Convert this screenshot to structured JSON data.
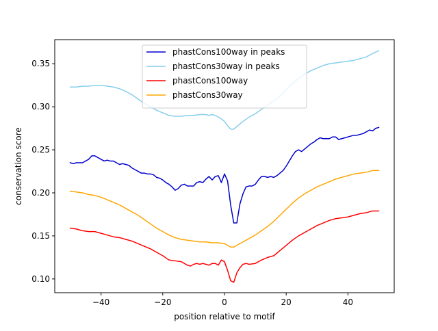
{
  "chart_data": {
    "type": "line",
    "title": "",
    "xlabel": "position relative to motif",
    "ylabel": "conservation score",
    "xlim": [
      -55,
      55
    ],
    "ylim": [
      0.084,
      0.378
    ],
    "xticks": [
      -40,
      -20,
      0,
      20,
      40
    ],
    "xtick_labels": [
      "−40",
      "−20",
      "0",
      "20",
      "40"
    ],
    "yticks": [
      0.1,
      0.15,
      0.2,
      0.25,
      0.3,
      0.35
    ],
    "ytick_labels": [
      "0.10",
      "0.15",
      "0.20",
      "0.25",
      "0.30",
      "0.35"
    ],
    "grid": false,
    "legend_position": "upper center",
    "series": [
      {
        "name": "phastCons100way in peaks",
        "color": "#0000cd",
        "points": [
          [
            -50,
            0.235
          ],
          [
            -49,
            0.234
          ],
          [
            -48,
            0.235
          ],
          [
            -47,
            0.235
          ],
          [
            -46,
            0.235
          ],
          [
            -45,
            0.237
          ],
          [
            -44,
            0.239
          ],
          [
            -43,
            0.243
          ],
          [
            -42,
            0.243
          ],
          [
            -41,
            0.241
          ],
          [
            -40,
            0.239
          ],
          [
            -39,
            0.237
          ],
          [
            -38,
            0.238
          ],
          [
            -37,
            0.237
          ],
          [
            -36,
            0.237
          ],
          [
            -35,
            0.235
          ],
          [
            -34,
            0.233
          ],
          [
            -33,
            0.234
          ],
          [
            -32,
            0.233
          ],
          [
            -31,
            0.232
          ],
          [
            -30,
            0.229
          ],
          [
            -29,
            0.227
          ],
          [
            -28,
            0.225
          ],
          [
            -27,
            0.223
          ],
          [
            -26,
            0.223
          ],
          [
            -25,
            0.222
          ],
          [
            -24,
            0.222
          ],
          [
            -23,
            0.221
          ],
          [
            -22,
            0.218
          ],
          [
            -21,
            0.217
          ],
          [
            -20,
            0.215
          ],
          [
            -19,
            0.212
          ],
          [
            -18,
            0.21
          ],
          [
            -17,
            0.207
          ],
          [
            -16,
            0.203
          ],
          [
            -15,
            0.205
          ],
          [
            -14,
            0.209
          ],
          [
            -13,
            0.21
          ],
          [
            -12,
            0.208
          ],
          [
            -11,
            0.208
          ],
          [
            -10,
            0.208
          ],
          [
            -9,
            0.212
          ],
          [
            -8,
            0.213
          ],
          [
            -7,
            0.212
          ],
          [
            -6,
            0.216
          ],
          [
            -5,
            0.219
          ],
          [
            -4,
            0.215
          ],
          [
            -3,
            0.219
          ],
          [
            -2,
            0.22
          ],
          [
            -1,
            0.212
          ],
          [
            0,
            0.222
          ],
          [
            1,
            0.214
          ],
          [
            2,
            0.186
          ],
          [
            3,
            0.165
          ],
          [
            4,
            0.165
          ],
          [
            5,
            0.187
          ],
          [
            6,
            0.199
          ],
          [
            7,
            0.207
          ],
          [
            8,
            0.208
          ],
          [
            9,
            0.208
          ],
          [
            10,
            0.21
          ],
          [
            11,
            0.215
          ],
          [
            12,
            0.219
          ],
          [
            13,
            0.219
          ],
          [
            14,
            0.218
          ],
          [
            15,
            0.219
          ],
          [
            16,
            0.218
          ],
          [
            17,
            0.22
          ],
          [
            18,
            0.223
          ],
          [
            19,
            0.226
          ],
          [
            20,
            0.231
          ],
          [
            21,
            0.237
          ],
          [
            22,
            0.243
          ],
          [
            23,
            0.248
          ],
          [
            24,
            0.25
          ],
          [
            25,
            0.248
          ],
          [
            26,
            0.251
          ],
          [
            27,
            0.254
          ],
          [
            28,
            0.257
          ],
          [
            29,
            0.259
          ],
          [
            30,
            0.262
          ],
          [
            31,
            0.264
          ],
          [
            32,
            0.263
          ],
          [
            33,
            0.263
          ],
          [
            34,
            0.263
          ],
          [
            35,
            0.265
          ],
          [
            36,
            0.265
          ],
          [
            37,
            0.262
          ],
          [
            38,
            0.263
          ],
          [
            39,
            0.264
          ],
          [
            40,
            0.265
          ],
          [
            41,
            0.266
          ],
          [
            42,
            0.267
          ],
          [
            43,
            0.267
          ],
          [
            44,
            0.268
          ],
          [
            45,
            0.269
          ],
          [
            46,
            0.271
          ],
          [
            47,
            0.273
          ],
          [
            48,
            0.272
          ],
          [
            49,
            0.275
          ],
          [
            50,
            0.276
          ]
        ]
      },
      {
        "name": "phastCons30way in peaks",
        "color": "#87ceeb",
        "points": [
          [
            -50,
            0.323
          ],
          [
            -48,
            0.323
          ],
          [
            -46,
            0.324
          ],
          [
            -44,
            0.324
          ],
          [
            -42,
            0.325
          ],
          [
            -40,
            0.325
          ],
          [
            -38,
            0.324
          ],
          [
            -36,
            0.323
          ],
          [
            -34,
            0.321
          ],
          [
            -32,
            0.318
          ],
          [
            -30,
            0.314
          ],
          [
            -28,
            0.309
          ],
          [
            -26,
            0.304
          ],
          [
            -24,
            0.3
          ],
          [
            -22,
            0.296
          ],
          [
            -20,
            0.293
          ],
          [
            -18,
            0.29
          ],
          [
            -16,
            0.289
          ],
          [
            -14,
            0.289
          ],
          [
            -12,
            0.29
          ],
          [
            -10,
            0.29
          ],
          [
            -8,
            0.291
          ],
          [
            -6,
            0.291
          ],
          [
            -5,
            0.29
          ],
          [
            -4,
            0.291
          ],
          [
            -3,
            0.29
          ],
          [
            -2,
            0.288
          ],
          [
            -1,
            0.286
          ],
          [
            0,
            0.283
          ],
          [
            1,
            0.278
          ],
          [
            2,
            0.274
          ],
          [
            3,
            0.274
          ],
          [
            4,
            0.277
          ],
          [
            5,
            0.28
          ],
          [
            6,
            0.283
          ],
          [
            8,
            0.288
          ],
          [
            10,
            0.292
          ],
          [
            12,
            0.297
          ],
          [
            14,
            0.302
          ],
          [
            16,
            0.307
          ],
          [
            18,
            0.312
          ],
          [
            20,
            0.32
          ],
          [
            22,
            0.327
          ],
          [
            24,
            0.333
          ],
          [
            26,
            0.338
          ],
          [
            28,
            0.342
          ],
          [
            30,
            0.345
          ],
          [
            32,
            0.348
          ],
          [
            34,
            0.35
          ],
          [
            36,
            0.351
          ],
          [
            38,
            0.352
          ],
          [
            40,
            0.353
          ],
          [
            42,
            0.354
          ],
          [
            44,
            0.356
          ],
          [
            46,
            0.358
          ],
          [
            48,
            0.362
          ],
          [
            50,
            0.365
          ]
        ]
      },
      {
        "name": "phastCons100way",
        "color": "#ff0000",
        "points": [
          [
            -50,
            0.159
          ],
          [
            -48,
            0.158
          ],
          [
            -46,
            0.156
          ],
          [
            -44,
            0.155
          ],
          [
            -42,
            0.155
          ],
          [
            -40,
            0.153
          ],
          [
            -38,
            0.151
          ],
          [
            -36,
            0.149
          ],
          [
            -34,
            0.148
          ],
          [
            -32,
            0.146
          ],
          [
            -30,
            0.144
          ],
          [
            -28,
            0.141
          ],
          [
            -26,
            0.138
          ],
          [
            -24,
            0.135
          ],
          [
            -22,
            0.131
          ],
          [
            -20,
            0.127
          ],
          [
            -18,
            0.122
          ],
          [
            -16,
            0.121
          ],
          [
            -14,
            0.12
          ],
          [
            -12,
            0.116
          ],
          [
            -11,
            0.115
          ],
          [
            -10,
            0.117
          ],
          [
            -9,
            0.118
          ],
          [
            -8,
            0.117
          ],
          [
            -7,
            0.118
          ],
          [
            -6,
            0.117
          ],
          [
            -5,
            0.116
          ],
          [
            -4,
            0.118
          ],
          [
            -3,
            0.118
          ],
          [
            -2,
            0.116
          ],
          [
            -1,
            0.122
          ],
          [
            0,
            0.12
          ],
          [
            1,
            0.11
          ],
          [
            2,
            0.098
          ],
          [
            3,
            0.096
          ],
          [
            4,
            0.107
          ],
          [
            5,
            0.113
          ],
          [
            6,
            0.117
          ],
          [
            7,
            0.118
          ],
          [
            8,
            0.117
          ],
          [
            10,
            0.118
          ],
          [
            12,
            0.122
          ],
          [
            14,
            0.125
          ],
          [
            16,
            0.127
          ],
          [
            18,
            0.133
          ],
          [
            20,
            0.139
          ],
          [
            22,
            0.145
          ],
          [
            24,
            0.15
          ],
          [
            26,
            0.154
          ],
          [
            28,
            0.158
          ],
          [
            30,
            0.162
          ],
          [
            32,
            0.165
          ],
          [
            34,
            0.168
          ],
          [
            36,
            0.17
          ],
          [
            38,
            0.171
          ],
          [
            40,
            0.172
          ],
          [
            42,
            0.174
          ],
          [
            44,
            0.176
          ],
          [
            46,
            0.177
          ],
          [
            48,
            0.179
          ],
          [
            50,
            0.179
          ]
        ]
      },
      {
        "name": "phastCons30way",
        "color": "#ffa500",
        "points": [
          [
            -50,
            0.202
          ],
          [
            -48,
            0.201
          ],
          [
            -46,
            0.2
          ],
          [
            -44,
            0.198
          ],
          [
            -42,
            0.197
          ],
          [
            -40,
            0.195
          ],
          [
            -38,
            0.192
          ],
          [
            -36,
            0.189
          ],
          [
            -34,
            0.186
          ],
          [
            -32,
            0.182
          ],
          [
            -30,
            0.178
          ],
          [
            -28,
            0.174
          ],
          [
            -26,
            0.169
          ],
          [
            -24,
            0.164
          ],
          [
            -22,
            0.159
          ],
          [
            -20,
            0.155
          ],
          [
            -18,
            0.151
          ],
          [
            -16,
            0.148
          ],
          [
            -14,
            0.146
          ],
          [
            -12,
            0.145
          ],
          [
            -10,
            0.144
          ],
          [
            -8,
            0.143
          ],
          [
            -6,
            0.143
          ],
          [
            -4,
            0.142
          ],
          [
            -2,
            0.142
          ],
          [
            0,
            0.141
          ],
          [
            1,
            0.139
          ],
          [
            2,
            0.137
          ],
          [
            3,
            0.137
          ],
          [
            4,
            0.139
          ],
          [
            6,
            0.143
          ],
          [
            8,
            0.147
          ],
          [
            10,
            0.151
          ],
          [
            12,
            0.156
          ],
          [
            14,
            0.161
          ],
          [
            16,
            0.167
          ],
          [
            18,
            0.174
          ],
          [
            20,
            0.181
          ],
          [
            22,
            0.188
          ],
          [
            24,
            0.194
          ],
          [
            26,
            0.199
          ],
          [
            28,
            0.203
          ],
          [
            30,
            0.207
          ],
          [
            32,
            0.21
          ],
          [
            34,
            0.213
          ],
          [
            36,
            0.216
          ],
          [
            38,
            0.218
          ],
          [
            40,
            0.22
          ],
          [
            42,
            0.222
          ],
          [
            44,
            0.223
          ],
          [
            46,
            0.224
          ],
          [
            48,
            0.226
          ],
          [
            50,
            0.226
          ]
        ]
      }
    ]
  }
}
